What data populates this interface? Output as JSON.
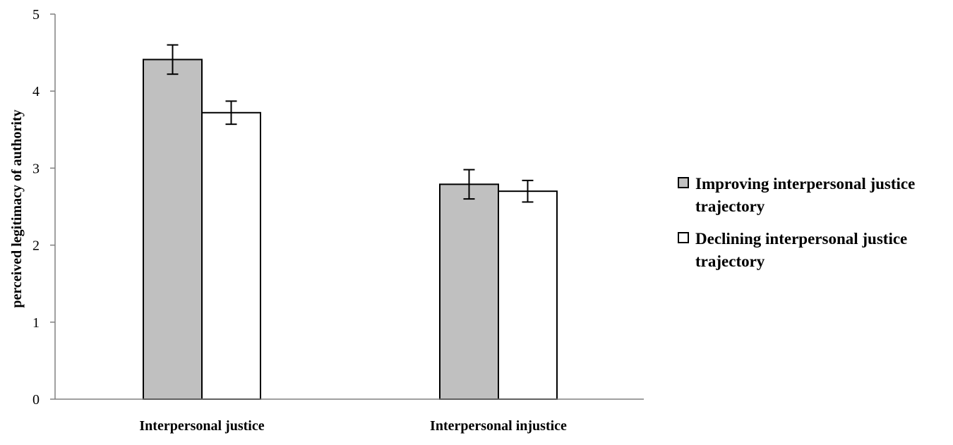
{
  "chart_data": {
    "type": "bar",
    "title": "",
    "xlabel": "",
    "ylabel": "perceived legitimacy of authority",
    "ylim": [
      0,
      5
    ],
    "yticks": [
      "0",
      "1",
      "2",
      "3",
      "4",
      "5"
    ],
    "grid": false,
    "legend_position": "right",
    "categories": [
      "Interpersonal justice",
      "Interpersonal injustice"
    ],
    "series": [
      {
        "name": "Improving interpersonal justice trajectory",
        "legend_lines": [
          "Improving interpersonal justice",
          "trajectory"
        ],
        "color": "#c0c0c0",
        "values": [
          4.41,
          2.79
        ],
        "errors": [
          0.19,
          0.19
        ]
      },
      {
        "name": "Declining interpersonal justice trajectory",
        "legend_lines": [
          "Declining interpersonal justice",
          "trajectory"
        ],
        "color": "#ffffff",
        "values": [
          3.72,
          2.7
        ],
        "errors": [
          0.15,
          0.14
        ]
      }
    ]
  }
}
